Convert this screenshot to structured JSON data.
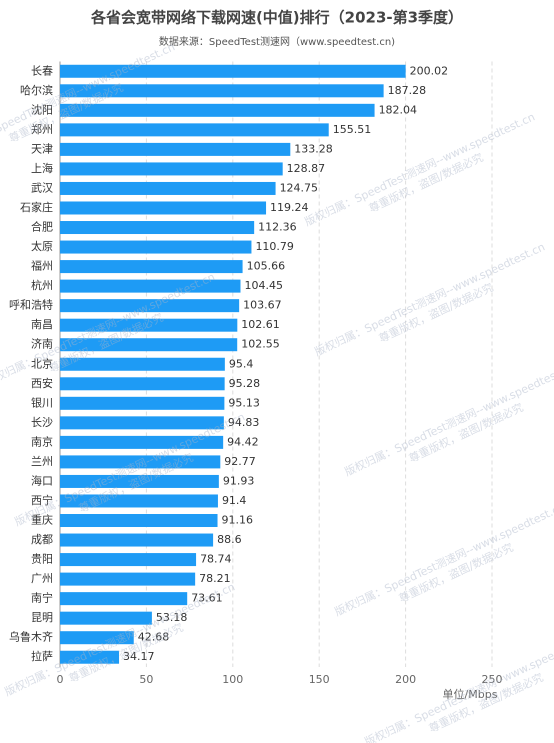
{
  "chart_data": {
    "type": "barh",
    "title": "各省会宽带网络下载网速(中值)排行（2023-第3季度）",
    "subtitle": "数据来源：SpeedTest测速网（www.speedtest.cn)",
    "x_label": "单位/Mbps",
    "watermark": [
      "版权归属：SpeedTest测速网--www.speedtest.cn",
      "尊重版权，盗图/数据必究"
    ],
    "categories": [
      "长春",
      "哈尔滨",
      "沈阳",
      "郑州",
      "天津",
      "上海",
      "武汉",
      "石家庄",
      "合肥",
      "太原",
      "福州",
      "杭州",
      "呼和浩特",
      "南昌",
      "济南",
      "北京",
      "西安",
      "银川",
      "长沙",
      "南京",
      "兰州",
      "海口",
      "西宁",
      "重庆",
      "成都",
      "贵阳",
      "广州",
      "南宁",
      "昆明",
      "乌鲁木齐",
      "拉萨"
    ],
    "values": [
      200.02,
      187.28,
      182.04,
      155.51,
      133.28,
      128.87,
      124.75,
      119.24,
      112.36,
      110.79,
      105.66,
      104.45,
      103.67,
      102.61,
      102.55,
      95.4,
      95.28,
      95.13,
      94.83,
      94.42,
      92.77,
      91.93,
      91.4,
      91.16,
      88.6,
      78.74,
      78.21,
      73.61,
      53.18,
      42.68,
      34.17
    ],
    "color": "#1e9bf5",
    "xlim": [
      0,
      250
    ],
    "xticks": [
      0,
      50,
      100,
      150,
      200,
      250
    ],
    "grid": true
  }
}
